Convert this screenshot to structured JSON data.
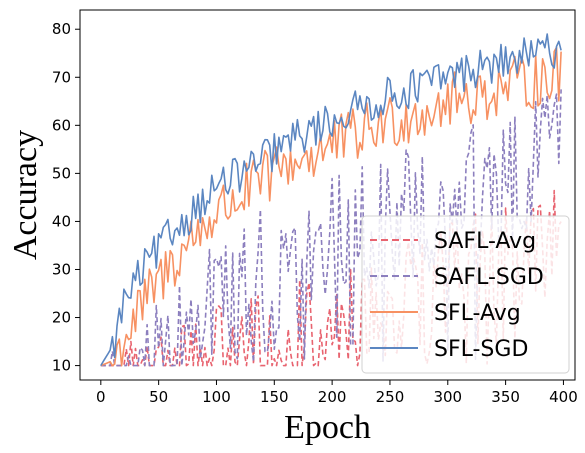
{
  "chart_data": {
    "type": "line",
    "xlabel": "Epoch",
    "ylabel": "Accuracy",
    "xlim": [
      -18,
      410
    ],
    "ylim": [
      7,
      84
    ],
    "x_ticks": [
      0,
      50,
      100,
      150,
      200,
      250,
      300,
      350,
      400
    ],
    "y_ticks": [
      10,
      20,
      30,
      40,
      50,
      60,
      70,
      80
    ],
    "grid": false,
    "legend": "bottom-right",
    "x_step": 2,
    "series": [
      {
        "name": "SAFL-Avg",
        "color": "#e8636f",
        "dash": "dashed",
        "anchors": [
          [
            0,
            10
          ],
          [
            20,
            10
          ],
          [
            40,
            11
          ],
          [
            60,
            13
          ],
          [
            80,
            15
          ],
          [
            100,
            18
          ],
          [
            120,
            20
          ],
          [
            150,
            22
          ],
          [
            200,
            25
          ],
          [
            250,
            30
          ],
          [
            300,
            36
          ],
          [
            350,
            40
          ],
          [
            398,
            44
          ]
        ],
        "noise_amp": 12,
        "base": 10
      },
      {
        "name": "SAFL-SGD",
        "color": "#8c7fbe",
        "dash": "dashed",
        "anchors": [
          [
            0,
            10
          ],
          [
            20,
            10
          ],
          [
            40,
            16
          ],
          [
            60,
            22
          ],
          [
            80,
            28
          ],
          [
            100,
            33
          ],
          [
            130,
            37
          ],
          [
            160,
            41
          ],
          [
            200,
            44
          ],
          [
            250,
            48
          ],
          [
            300,
            53
          ],
          [
            350,
            57
          ],
          [
            398,
            62
          ]
        ],
        "noise_amp": 14,
        "base": 10
      },
      {
        "name": "SFL-Avg",
        "color": "#f79162",
        "dash": "solid",
        "anchors": [
          [
            0,
            10
          ],
          [
            10,
            11
          ],
          [
            20,
            17
          ],
          [
            40,
            25
          ],
          [
            60,
            32
          ],
          [
            80,
            38
          ],
          [
            100,
            43
          ],
          [
            130,
            48
          ],
          [
            160,
            53
          ],
          [
            200,
            57
          ],
          [
            250,
            62
          ],
          [
            300,
            66
          ],
          [
            350,
            69
          ],
          [
            398,
            72
          ]
        ],
        "noise_amp": 6,
        "base": 10
      },
      {
        "name": "SFL-SGD",
        "color": "#5b86c1",
        "dash": "solid",
        "anchors": [
          [
            0,
            10
          ],
          [
            10,
            14
          ],
          [
            20,
            24
          ],
          [
            40,
            32
          ],
          [
            60,
            38
          ],
          [
            80,
            43
          ],
          [
            100,
            48
          ],
          [
            130,
            52
          ],
          [
            160,
            57
          ],
          [
            200,
            62
          ],
          [
            250,
            67
          ],
          [
            300,
            71
          ],
          [
            350,
            74
          ],
          [
            398,
            77
          ]
        ],
        "noise_amp": 4,
        "base": 10
      }
    ]
  }
}
